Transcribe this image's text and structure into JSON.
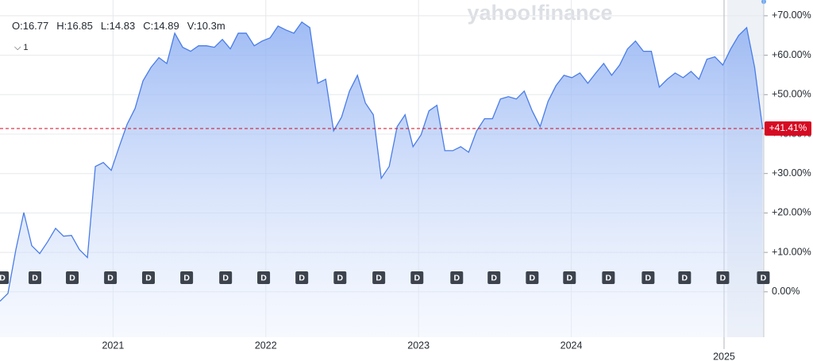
{
  "header": {
    "watermark": "yahoo!finance",
    "ohlc": [
      "O:16.77",
      "H:16.85",
      "L:14.83",
      "C:14.89",
      "V:10.3m"
    ],
    "series_toggle": "1"
  },
  "chart_data": {
    "type": "area",
    "x": [
      2020.26,
      2020.312,
      2020.364,
      2020.416,
      2020.468,
      2020.52,
      2020.572,
      2020.624,
      2020.676,
      2020.728,
      2020.78,
      2020.832,
      2020.884,
      2020.936,
      2020.988,
      2021.04,
      2021.092,
      2021.144,
      2021.196,
      2021.248,
      2021.3,
      2021.352,
      2021.404,
      2021.456,
      2021.508,
      2021.56,
      2021.612,
      2021.664,
      2021.716,
      2021.768,
      2021.82,
      2021.872,
      2021.924,
      2021.976,
      2022.028,
      2022.08,
      2022.132,
      2022.184,
      2022.236,
      2022.288,
      2022.34,
      2022.392,
      2022.444,
      2022.496,
      2022.548,
      2022.6,
      2022.652,
      2022.704,
      2022.756,
      2022.808,
      2022.86,
      2022.912,
      2022.964,
      2023.016,
      2023.068,
      2023.12,
      2023.172,
      2023.224,
      2023.276,
      2023.328,
      2023.38,
      2023.432,
      2023.484,
      2023.536,
      2023.588,
      2023.64,
      2023.692,
      2023.744,
      2023.796,
      2023.848,
      2023.9,
      2023.952,
      2024.004,
      2024.056,
      2024.108,
      2024.16,
      2024.212,
      2024.264,
      2024.316,
      2024.368,
      2024.42,
      2024.472,
      2024.524,
      2024.576,
      2024.628,
      2024.68,
      2024.732,
      2024.784,
      2024.836,
      2024.888,
      2024.94,
      2024.992,
      2025.044,
      2025.096,
      2025.148,
      2025.2,
      2025.252
    ],
    "series": [
      {
        "color": "#4a7de8",
        "values": [
          -2.4,
          -0.4,
          10.7,
          20.1,
          11.7,
          9.7,
          12.7,
          16.1,
          14.1,
          14.3,
          10.7,
          8.7,
          31.8,
          32.8,
          30.8,
          36.8,
          42.5,
          46.5,
          53.5,
          56.9,
          59.4,
          57.9,
          65.6,
          62.0,
          61.0,
          62.4,
          62.4,
          62.0,
          64.0,
          61.6,
          65.6,
          65.6,
          62.4,
          63.6,
          64.4,
          67.4,
          66.4,
          65.6,
          68.4,
          67.0,
          52.9,
          53.9,
          40.8,
          44.3,
          50.9,
          54.9,
          47.9,
          44.9,
          28.8,
          31.8,
          41.9,
          44.9,
          36.8,
          39.8,
          45.9,
          47.3,
          35.8,
          35.8,
          36.8,
          35.4,
          40.8,
          43.9,
          43.9,
          48.9,
          49.5,
          48.9,
          50.9,
          45.9,
          41.9,
          48.3,
          52.3,
          54.9,
          54.3,
          55.5,
          52.9,
          55.5,
          57.9,
          54.9,
          57.5,
          61.6,
          63.6,
          61.0,
          61.0,
          51.9,
          53.9,
          55.5,
          54.3,
          55.9,
          53.9,
          59.0,
          59.6,
          57.5,
          61.6,
          65.0,
          67.0,
          56.9,
          41.41
        ]
      }
    ],
    "last_label": "+41.41%",
    "xlim": [
      2020.26,
      2025.26
    ],
    "xticks": [
      2021,
      2022,
      2023,
      2024,
      2025
    ],
    "ylim": [
      -10.5,
      74
    ],
    "yticks": [
      {
        "value": 0,
        "label": "0.00%"
      },
      {
        "value": 10,
        "label": "+10.00%"
      },
      {
        "value": 20,
        "label": "+20.00%"
      },
      {
        "value": 30,
        "label": "+30.00%"
      },
      {
        "value": 40,
        "label": "+40.00%"
      },
      {
        "value": 50,
        "label": "+50.00%"
      },
      {
        "value": 60,
        "label": "+60.00%"
      },
      {
        "value": 70,
        "label": "+70.00%"
      }
    ],
    "grid": true,
    "event_markers": {
      "label": "D",
      "x": [
        2020.276,
        2020.489,
        2020.733,
        2020.983,
        2021.232,
        2021.482,
        2021.737,
        2021.986,
        2022.236,
        2022.486,
        2022.74,
        2022.99,
        2023.25,
        2023.494,
        2023.744,
        2023.988,
        2024.243,
        2024.503,
        2024.742,
        2024.992,
        2025.257
      ]
    }
  }
}
